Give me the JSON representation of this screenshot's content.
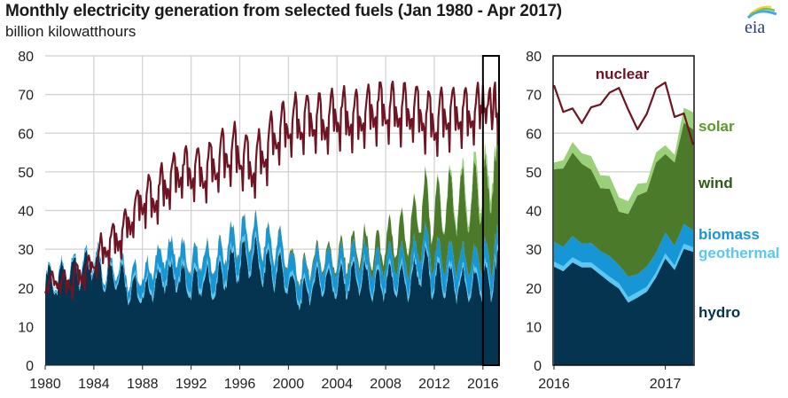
{
  "header": {
    "title": "Monthly electricity generation from selected fuels (Jan 1980 - Apr 2017)",
    "subtitle": "billion kilowatthours",
    "logo_text": "eia"
  },
  "colors": {
    "nuclear": "#6e1423",
    "solar": "#9bd07a",
    "wind": "#4a7a2a",
    "biomass": "#1796d6",
    "geothermal": "#59c8f2",
    "hydro": "#04344f",
    "grid": "#d0d0d0",
    "highlight_box": "#000000",
    "logo_text": "#2a3e73"
  },
  "chart_data": [
    {
      "type": "area",
      "title": "Monthly electricity generation from selected fuels (Jan 1980 - Apr 2017)",
      "ylabel": "billion kilowatthours",
      "xlabel": "",
      "xlim": [
        "1980-01",
        "2017-04"
      ],
      "ylim": [
        0,
        80
      ],
      "yticks": [
        0,
        10,
        20,
        30,
        40,
        50,
        60,
        70,
        80
      ],
      "xticks": [
        "1980",
        "1984",
        "1988",
        "1992",
        "1996",
        "2000",
        "2004",
        "2008",
        "2012",
        "2016"
      ],
      "grid": true,
      "highlight_range": [
        "2016-01",
        "2017-04"
      ],
      "stack_order": [
        "hydro",
        "geothermal",
        "biomass",
        "wind",
        "solar"
      ],
      "series_yearly_approx": {
        "years": [
          1980,
          1981,
          1982,
          1983,
          1984,
          1985,
          1986,
          1987,
          1988,
          1989,
          1990,
          1991,
          1992,
          1993,
          1994,
          1995,
          1996,
          1997,
          1998,
          1999,
          2000,
          2001,
          2002,
          2003,
          2004,
          2005,
          2006,
          2007,
          2008,
          2009,
          2010,
          2011,
          2012,
          2013,
          2014,
          2015,
          2016
        ],
        "nuclear_mean": [
          21,
          22,
          22,
          24,
          27,
          32,
          34,
          38,
          44,
          44,
          48,
          51,
          51,
          51,
          53,
          56,
          56,
          52,
          56,
          61,
          63,
          64,
          65,
          64,
          66,
          65,
          65,
          67,
          67,
          67,
          67,
          66,
          64,
          66,
          66,
          66,
          67
        ],
        "nuclear_amplitude": [
          2,
          2,
          3,
          3,
          3,
          4,
          4,
          4,
          5,
          5,
          5,
          5,
          5,
          6,
          6,
          6,
          6,
          6,
          6,
          6,
          6,
          6,
          6,
          6,
          6,
          6,
          6,
          6,
          6,
          6,
          6,
          6,
          6,
          6,
          6,
          6,
          6
        ],
        "hydro_mean": [
          23,
          21,
          25,
          24,
          27,
          23,
          24,
          20,
          18,
          21,
          23,
          23,
          20,
          22,
          20,
          25,
          27,
          28,
          25,
          25,
          22,
          17,
          21,
          22,
          21,
          22,
          23,
          20,
          21,
          22,
          21,
          26,
          22,
          22,
          21,
          20,
          22
        ],
        "hydro_amplitude": [
          4,
          4,
          4,
          4,
          4,
          4,
          4,
          4,
          3,
          4,
          4,
          4,
          4,
          4,
          4,
          5,
          5,
          5,
          5,
          5,
          4,
          3,
          4,
          4,
          4,
          4,
          5,
          4,
          4,
          4,
          4,
          6,
          4,
          4,
          4,
          4,
          5
        ],
        "geothermal_mean": [
          0.3,
          0.4,
          0.4,
          0.5,
          0.6,
          0.8,
          0.9,
          1.0,
          1.1,
          1.2,
          1.3,
          1.3,
          1.3,
          1.4,
          1.4,
          1.3,
          1.4,
          1.4,
          1.4,
          1.4,
          1.2,
          1.1,
          1.2,
          1.2,
          1.2,
          1.2,
          1.2,
          1.2,
          1.2,
          1.3,
          1.3,
          1.4,
          1.3,
          1.3,
          1.3,
          1.3,
          1.3
        ],
        "biomass_mean": [
          0.3,
          0.4,
          0.5,
          0.6,
          0.7,
          1.0,
          1.5,
          2.5,
          3.5,
          4.5,
          5,
          5,
          5,
          5,
          5,
          5,
          5,
          5,
          5,
          5,
          5,
          4.5,
          4.5,
          4.5,
          4.5,
          4.5,
          4.5,
          4.5,
          4.5,
          4.5,
          4.5,
          4.8,
          5,
          5,
          5.4,
          5.3,
          5.2
        ],
        "wind_mean": [
          0,
          0,
          0,
          0,
          0,
          0,
          0,
          0,
          0.1,
          0.2,
          0.2,
          0.2,
          0.2,
          0.2,
          0.3,
          0.3,
          0.3,
          0.3,
          0.3,
          0.4,
          0.5,
          0.6,
          0.9,
          0.9,
          1.2,
          1.5,
          2.2,
          2.9,
          4.6,
          6.1,
          7.9,
          10,
          11.7,
          14,
          15.1,
          15.6,
          18.9
        ],
        "wind_amplitude": [
          0,
          0,
          0,
          0,
          0,
          0,
          0,
          0,
          0,
          0,
          0,
          0,
          0,
          0,
          0,
          0,
          0,
          0,
          0,
          0,
          0.2,
          0.2,
          0.3,
          0.3,
          0.4,
          0.5,
          0.8,
          1,
          1.5,
          2,
          2.5,
          3,
          3.5,
          4,
          4.5,
          4.5,
          5.5
        ],
        "solar_mean": [
          0,
          0,
          0,
          0,
          0,
          0,
          0,
          0,
          0,
          0,
          0,
          0,
          0,
          0,
          0,
          0,
          0,
          0,
          0,
          0,
          0,
          0,
          0,
          0,
          0,
          0,
          0,
          0,
          0.1,
          0.1,
          0.1,
          0.2,
          0.4,
          0.8,
          1.5,
          2.2,
          3.0
        ]
      }
    },
    {
      "type": "area",
      "title": "Jan 2016 - Apr 2017 detail",
      "ylabel": "billion kilowatthours",
      "xlim": [
        "2016-01",
        "2017-04"
      ],
      "ylim": [
        0,
        80
      ],
      "yticks": [
        0,
        10,
        20,
        30,
        40,
        50,
        60,
        70,
        80
      ],
      "xticks": [
        "2016",
        "2017"
      ],
      "grid": true,
      "months": [
        "2016-01",
        "2016-02",
        "2016-03",
        "2016-04",
        "2016-05",
        "2016-06",
        "2016-07",
        "2016-08",
        "2016-09",
        "2016-10",
        "2016-11",
        "2016-12",
        "2017-01",
        "2017-02",
        "2017-03",
        "2017-04"
      ],
      "series": [
        {
          "name": "hydro",
          "label": "hydro",
          "values": [
            25.5,
            24.3,
            26.6,
            25.3,
            25.3,
            23.4,
            21.5,
            19.8,
            16.2,
            17.5,
            19.0,
            22.7,
            27.6,
            24.6,
            30.1,
            29.3
          ]
        },
        {
          "name": "geothermal",
          "label": "geothermal",
          "values": [
            1.3,
            1.3,
            1.3,
            1.3,
            1.3,
            1.3,
            1.4,
            1.4,
            1.4,
            1.4,
            1.3,
            1.3,
            1.3,
            1.2,
            1.3,
            1.2
          ]
        },
        {
          "name": "biomass",
          "label": "biomass",
          "values": [
            5.1,
            5.0,
            5.5,
            4.8,
            5.0,
            4.8,
            5.3,
            4.7,
            5.3,
            4.6,
            5.2,
            5.0,
            5.4,
            5.1,
            5.1,
            4.4
          ]
        },
        {
          "name": "wind",
          "label": "wind",
          "values": [
            18.8,
            20.3,
            21.6,
            20.7,
            19.0,
            16.3,
            17.4,
            13.8,
            16.2,
            20.4,
            19.4,
            23.4,
            20.3,
            21.5,
            26.2,
            26.1
          ]
        },
        {
          "name": "solar",
          "label": "solar",
          "values": [
            1.7,
            2.1,
            2.7,
            2.7,
            3.5,
            3.3,
            3.3,
            3.7,
            3.3,
            3.0,
            2.3,
            2.6,
            2.3,
            2.0,
            3.9,
            4.4
          ]
        },
        {
          "name": "nuclear",
          "label": "nuclear",
          "type": "line",
          "values": [
            72.4,
            65.5,
            66.4,
            62.6,
            66.7,
            67.4,
            70.5,
            71.7,
            66.1,
            61.0,
            65.0,
            71.6,
            73.1,
            64.2,
            65.1,
            57.0
          ]
        }
      ],
      "legend_placement": "right",
      "legend_entries": [
        "nuclear",
        "solar",
        "wind",
        "biomass",
        "geothermal",
        "hydro"
      ]
    }
  ]
}
